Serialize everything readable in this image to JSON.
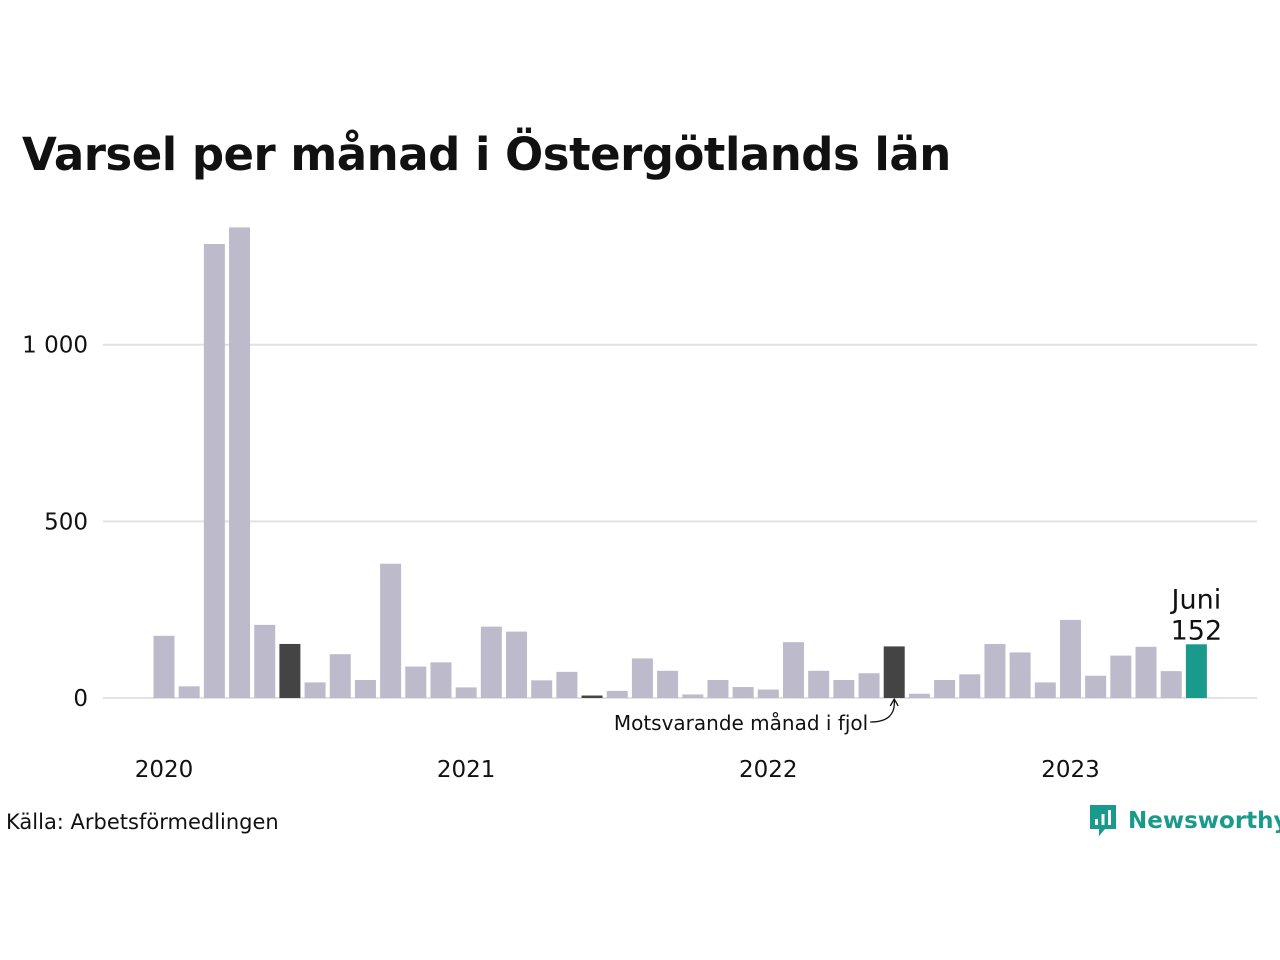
{
  "title": "Varsel per månad i Östergötlands län",
  "source": "Källa: Arbetsförmedlingen",
  "logo_text": "Newsworthy",
  "colors": {
    "bar_default": "#bdbacb",
    "bar_previous_year": "#444444",
    "bar_current": "#1a9a8a",
    "gridline": "#e2e2e2",
    "logo": "#1a9a8a"
  },
  "chart_data": {
    "type": "bar",
    "title": "Varsel per månad i Östergötlands län",
    "xlabel": "",
    "ylabel": "",
    "ylim": [
      0,
      1350
    ],
    "y_ticks": [
      0,
      500,
      1000
    ],
    "y_tick_labels": [
      "0",
      "500",
      "1 000"
    ],
    "x_tick_labels": [
      "2020",
      "2021",
      "2022",
      "2023"
    ],
    "grid": true,
    "categories": [
      "2020-01",
      "2020-02",
      "2020-03",
      "2020-04",
      "2020-05",
      "2020-06",
      "2020-07",
      "2020-08",
      "2020-09",
      "2020-10",
      "2020-11",
      "2020-12",
      "2021-01",
      "2021-02",
      "2021-03",
      "2021-04",
      "2021-05",
      "2021-06",
      "2021-07",
      "2021-08",
      "2021-09",
      "2021-10",
      "2021-11",
      "2021-12",
      "2022-01",
      "2022-02",
      "2022-03",
      "2022-04",
      "2022-05",
      "2022-06",
      "2022-07",
      "2022-08",
      "2022-09",
      "2022-10",
      "2022-11",
      "2022-12",
      "2023-01",
      "2023-02",
      "2023-03",
      "2023-04",
      "2023-05",
      "2023-06"
    ],
    "values": [
      176,
      33,
      1285,
      1332,
      207,
      153,
      44,
      124,
      51,
      380,
      89,
      101,
      30,
      202,
      188,
      50,
      74,
      7,
      20,
      112,
      77,
      10,
      51,
      31,
      24,
      158,
      77,
      51,
      70,
      146,
      12,
      51,
      67,
      153,
      129,
      44,
      221,
      63,
      120,
      145,
      76,
      152
    ],
    "highlight": {
      "index": 41,
      "label": "Juni",
      "value_label": "152"
    },
    "previous_year_indices": [
      5,
      17,
      29
    ],
    "annotation": {
      "text": "Motsvarande månad i fjol",
      "target_index": 29
    }
  }
}
